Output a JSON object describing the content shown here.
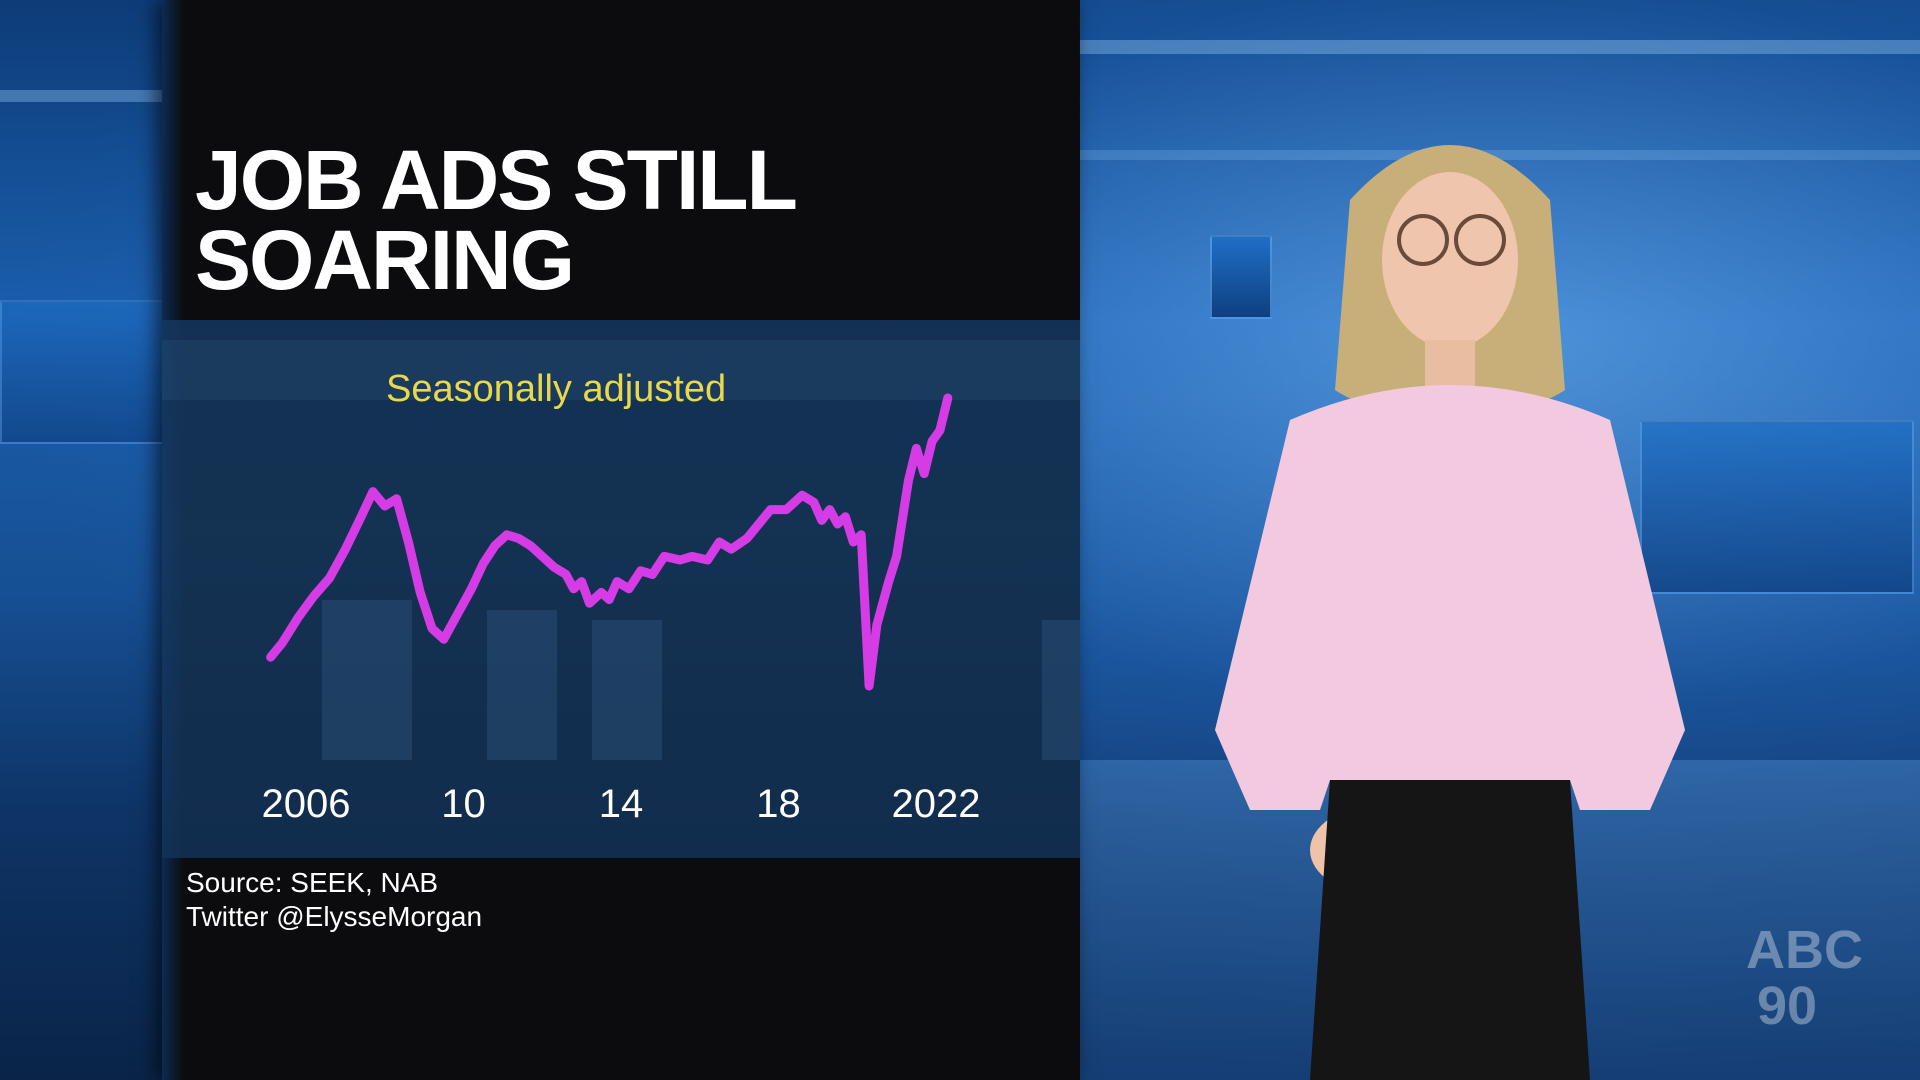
{
  "title_lines": [
    "JOB ADS STILL",
    "SOARING"
  ],
  "subtitle": "Seasonally adjusted",
  "source_lines": [
    "Source: SEEK, NAB",
    "Twitter @ElysseMorgan"
  ],
  "logo_text": [
    "ABC",
    "90"
  ],
  "colors": {
    "line": "#d63ce6",
    "subtitle": "#e8d84a",
    "panel": "#0c0c0e"
  },
  "chart_data": {
    "type": "line",
    "title": "JOB ADS STILL SOARING",
    "subtitle": "Seasonally adjusted",
    "x_tick_labels": [
      "2006",
      "10",
      "14",
      "18",
      "2022"
    ],
    "x_tick_values": [
      2006,
      2010,
      2014,
      2018,
      2022
    ],
    "xlim": [
      2006,
      2022.8
    ],
    "ylim": [
      0,
      100
    ],
    "grid": false,
    "legend": "none",
    "series": [
      {
        "values": [
          [
            2005.1,
            23
          ],
          [
            2005.4,
            27
          ],
          [
            2005.8,
            34
          ],
          [
            2006.2,
            40
          ],
          [
            2006.6,
            45
          ],
          [
            2007.0,
            53
          ],
          [
            2007.4,
            62
          ],
          [
            2007.7,
            69
          ],
          [
            2008.0,
            65
          ],
          [
            2008.3,
            67
          ],
          [
            2008.6,
            55
          ],
          [
            2008.9,
            41
          ],
          [
            2009.2,
            31
          ],
          [
            2009.5,
            28
          ],
          [
            2009.8,
            34
          ],
          [
            2010.2,
            42
          ],
          [
            2010.5,
            49
          ],
          [
            2010.8,
            54
          ],
          [
            2011.1,
            57
          ],
          [
            2011.4,
            56
          ],
          [
            2011.7,
            54
          ],
          [
            2012.0,
            51
          ],
          [
            2012.3,
            48
          ],
          [
            2012.6,
            46
          ],
          [
            2012.8,
            42
          ],
          [
            2013.0,
            44
          ],
          [
            2013.2,
            38
          ],
          [
            2013.5,
            41
          ],
          [
            2013.7,
            39
          ],
          [
            2013.9,
            44
          ],
          [
            2014.2,
            42
          ],
          [
            2014.5,
            47
          ],
          [
            2014.8,
            46
          ],
          [
            2015.1,
            51
          ],
          [
            2015.5,
            50
          ],
          [
            2015.8,
            51
          ],
          [
            2016.2,
            50
          ],
          [
            2016.5,
            55
          ],
          [
            2016.8,
            53
          ],
          [
            2017.2,
            56
          ],
          [
            2017.5,
            60
          ],
          [
            2017.8,
            64
          ],
          [
            2018.2,
            64
          ],
          [
            2018.6,
            68
          ],
          [
            2018.9,
            66
          ],
          [
            2019.1,
            61
          ],
          [
            2019.3,
            64
          ],
          [
            2019.5,
            60
          ],
          [
            2019.7,
            62
          ],
          [
            2019.9,
            55
          ],
          [
            2020.1,
            57
          ],
          [
            2020.3,
            15
          ],
          [
            2020.5,
            32
          ],
          [
            2020.8,
            44
          ],
          [
            2021.0,
            51
          ],
          [
            2021.3,
            72
          ],
          [
            2021.5,
            81
          ],
          [
            2021.7,
            74
          ],
          [
            2021.9,
            83
          ],
          [
            2022.1,
            86
          ],
          [
            2022.3,
            95
          ]
        ]
      }
    ]
  }
}
